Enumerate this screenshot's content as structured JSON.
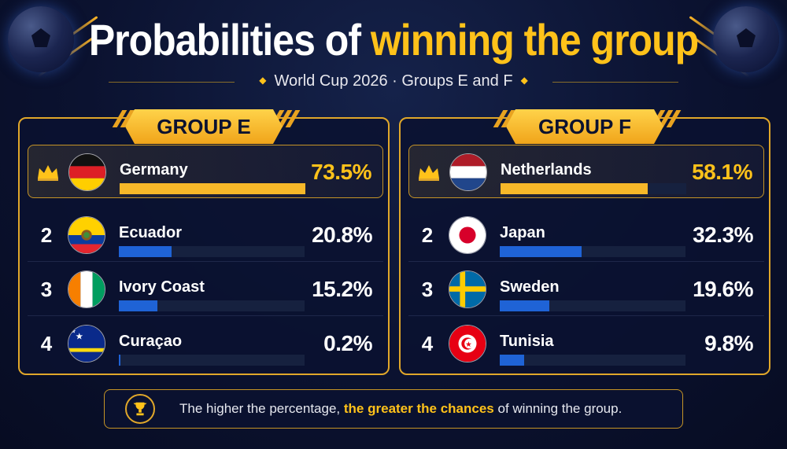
{
  "title": {
    "part1": "Probabilities of",
    "part2": "winning the group"
  },
  "subtitle": "World Cup 2026 · Groups E and F",
  "chart_data": {
    "type": "bar",
    "ylim": [
      0,
      100
    ],
    "groups": [
      {
        "name": "GROUP E",
        "teams": [
          {
            "rank": "",
            "name": "Germany",
            "value": 73.5,
            "label": "73.5%",
            "flag": "germany"
          },
          {
            "rank": "2",
            "name": "Ecuador",
            "value": 20.8,
            "label": "20.8%",
            "flag": "ecuador"
          },
          {
            "rank": "3",
            "name": "Ivory Coast",
            "value": 15.2,
            "label": "15.2%",
            "flag": "ivory-coast"
          },
          {
            "rank": "4",
            "name": "Curaçao",
            "value": 0.2,
            "label": "0.2%",
            "flag": "curacao"
          }
        ]
      },
      {
        "name": "GROUP F",
        "teams": [
          {
            "rank": "",
            "name": "Netherlands",
            "value": 58.1,
            "label": "58.1%",
            "flag": "netherlands"
          },
          {
            "rank": "2",
            "name": "Japan",
            "value": 32.3,
            "label": "32.3%",
            "flag": "japan"
          },
          {
            "rank": "3",
            "name": "Sweden",
            "value": 19.6,
            "label": "19.6%",
            "flag": "sweden"
          },
          {
            "rank": "4",
            "name": "Tunisia",
            "value": 9.8,
            "label": "9.8%",
            "flag": "tunisia"
          }
        ]
      }
    ]
  },
  "footer": {
    "text_before": "The higher the percentage,",
    "text_highlight": "the greater the chances",
    "text_after": "of winning the group."
  },
  "icons": {
    "leader": "crown-icon",
    "footer": "trophy-icon"
  },
  "colors": {
    "accent": "#ffc21a",
    "bar_leader": "#f7b829",
    "bar": "#1f63d6",
    "background": "#0b1230"
  }
}
